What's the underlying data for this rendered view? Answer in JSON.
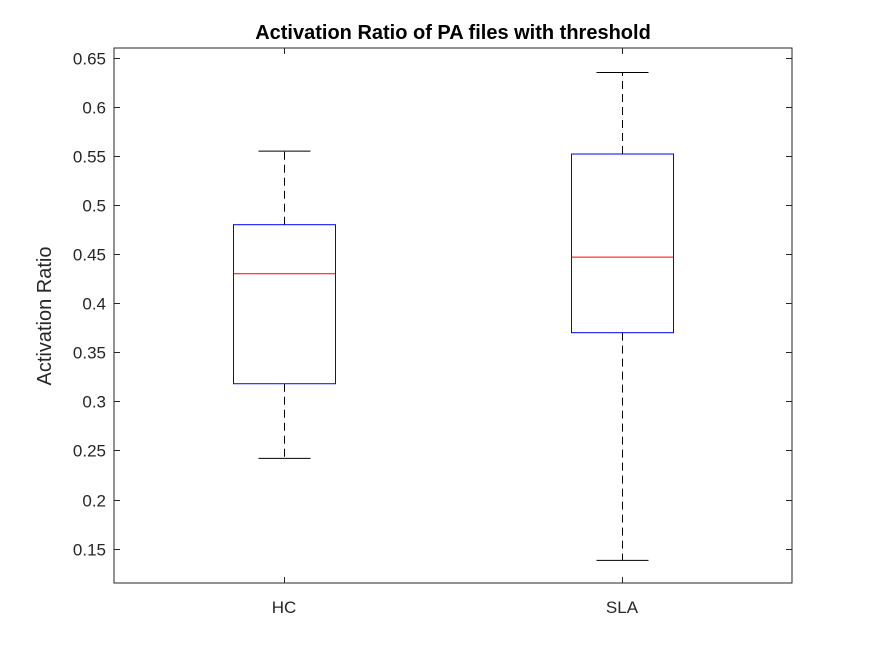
{
  "chart_data": {
    "type": "boxplot",
    "title": "Activation Ratio of PA files with threshold",
    "xlabel": "",
    "ylabel": "Activation Ratio",
    "ylim": [
      0.115,
      0.66
    ],
    "yticks": [
      "0.15",
      "0.2",
      "0.25",
      "0.3",
      "0.35",
      "0.4",
      "0.45",
      "0.5",
      "0.55",
      "0.6",
      "0.65"
    ],
    "ytick_values": [
      0.15,
      0.2,
      0.25,
      0.3,
      0.35,
      0.4,
      0.45,
      0.5,
      0.55,
      0.6,
      0.65
    ],
    "categories": [
      "HC",
      "SLA"
    ],
    "boxes": [
      {
        "label": "HC",
        "whisker_low": 0.242,
        "q1": 0.318,
        "median": 0.43,
        "q3": 0.48,
        "whisker_high": 0.555
      },
      {
        "label": "SLA",
        "whisker_low": 0.138,
        "q1": 0.37,
        "median": 0.447,
        "q3": 0.552,
        "whisker_high": 0.635
      }
    ],
    "grid": false,
    "colors": {
      "box": "#0000ff",
      "median": "#ff0000",
      "whisker": "#000000",
      "axes": "#262626"
    }
  }
}
